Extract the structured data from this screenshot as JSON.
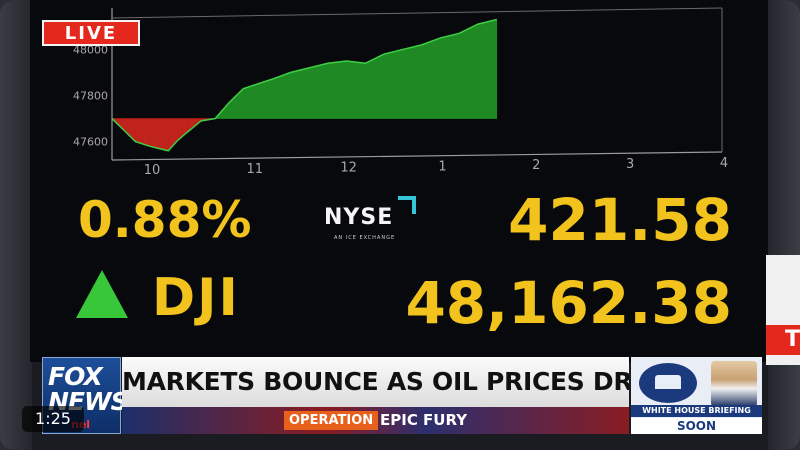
{
  "live_badge": "LIVE",
  "chart_data": {
    "type": "area",
    "title": "",
    "xlabel": "",
    "ylabel": "",
    "x_ticks": [
      "10",
      "11",
      "12",
      "1",
      "2",
      "3",
      "4"
    ],
    "y_ticks": [
      47600,
      47800,
      48000
    ],
    "ylim": [
      47520,
      48180
    ],
    "baseline": 47700,
    "colors": {
      "up": "#1f8a24",
      "down": "#c0221c"
    },
    "series": [
      {
        "x": [
          9.5,
          9.6,
          9.75,
          9.9,
          10.0,
          10.1,
          10.2,
          10.3,
          10.45,
          10.6,
          10.75,
          10.9,
          11.05,
          11.2,
          11.4,
          11.6,
          11.8,
          12.0,
          12.2,
          12.4,
          12.6,
          12.8,
          13.0,
          13.2,
          13.4,
          13.6
        ],
        "values": [
          47700,
          47660,
          47600,
          47580,
          47570,
          47560,
          47605,
          47640,
          47690,
          47700,
          47770,
          47830,
          47850,
          47870,
          47900,
          47920,
          47940,
          47950,
          47940,
          47980,
          48000,
          48020,
          48050,
          48070,
          48110,
          48130
        ]
      }
    ]
  },
  "market": {
    "percent_change": "0.88%",
    "index": "DJI",
    "point_change": "421.58",
    "index_value": "48,162.38",
    "direction": "up"
  },
  "exchange": {
    "name": "NYSE",
    "sub": "AN ICE EXCHANGE"
  },
  "lower_third": {
    "network_line1": "FOX",
    "network_line2": "NEWS",
    "network_line3": "nel",
    "headline": "MARKETS BOUNCE AS OIL PRICES DROP",
    "tag": "OPERATION",
    "tag_text": "EPIC FURY",
    "side_label": "WHITE HOUSE BRIEFING",
    "side_status": "SOON"
  },
  "player": {
    "time": "1:25"
  },
  "side_sign": "T"
}
